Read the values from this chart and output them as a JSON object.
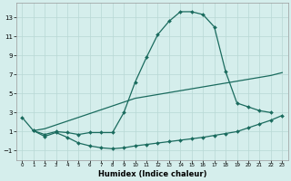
{
  "background_color": "#d5eeec",
  "grid_color": "#b8d8d5",
  "line_color": "#1a6b5e",
  "xlabel": "Humidex (Indice chaleur)",
  "xlim": [
    -0.5,
    23.5
  ],
  "ylim": [
    -2.0,
    14.5
  ],
  "xticks": [
    0,
    1,
    2,
    3,
    4,
    5,
    6,
    7,
    8,
    9,
    10,
    11,
    12,
    13,
    14,
    15,
    16,
    17,
    18,
    19,
    20,
    21,
    22,
    23
  ],
  "yticks": [
    -1,
    1,
    3,
    5,
    7,
    9,
    11,
    13
  ],
  "line1_x": [
    0,
    1,
    2,
    3,
    4,
    5,
    6,
    7,
    8,
    9,
    10,
    11,
    12,
    13,
    14,
    15,
    16,
    17,
    18,
    19,
    20,
    21,
    22
  ],
  "line1_y": [
    2.5,
    1.1,
    0.7,
    1.0,
    0.9,
    0.7,
    0.9,
    0.9,
    0.9,
    3.0,
    6.2,
    8.8,
    11.2,
    12.6,
    13.6,
    13.6,
    13.3,
    12.0,
    7.3,
    4.0,
    3.6,
    3.2,
    3.0
  ],
  "line2_x": [
    1,
    2,
    3,
    4,
    5,
    6,
    7,
    8,
    9,
    10,
    11,
    12,
    13,
    14,
    15,
    16,
    17,
    18,
    19,
    20,
    21,
    22,
    23
  ],
  "line2_y": [
    1.1,
    0.5,
    0.9,
    0.4,
    -0.2,
    -0.5,
    -0.7,
    -0.8,
    -0.7,
    -0.5,
    -0.35,
    -0.2,
    -0.05,
    0.1,
    0.25,
    0.4,
    0.6,
    0.8,
    1.0,
    1.4,
    1.8,
    2.2,
    2.7
  ],
  "line3_x": [
    1,
    2,
    3,
    4,
    5,
    6,
    7,
    8,
    9,
    10,
    11,
    12,
    13,
    14,
    15,
    16,
    17,
    18,
    19,
    20,
    21,
    22,
    23
  ],
  "line3_y": [
    1.1,
    1.3,
    1.7,
    2.1,
    2.5,
    2.9,
    3.3,
    3.7,
    4.1,
    4.5,
    4.7,
    4.9,
    5.1,
    5.3,
    5.5,
    5.7,
    5.9,
    6.1,
    6.3,
    6.5,
    6.7,
    6.9,
    7.2
  ]
}
